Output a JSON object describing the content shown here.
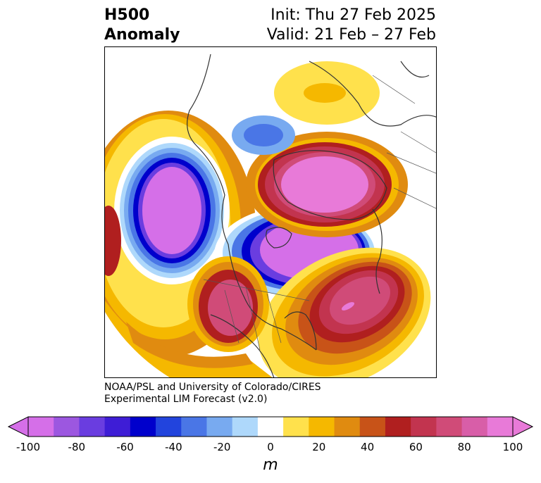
{
  "title": {
    "line1": "H500",
    "line2": "Anomaly",
    "init": "Init: Thu 27 Feb 2025",
    "valid": "Valid: 21 Feb – 27 Feb"
  },
  "credit": {
    "line1": "NOAA/PSL and University of Colorado/CIRES",
    "line2": "Experimental LIM Forecast (v2.0)"
  },
  "colorbar": {
    "unit": "m",
    "ticks": [
      "-100",
      "-80",
      "-60",
      "-40",
      "-20",
      "0",
      "20",
      "40",
      "60",
      "80",
      "100"
    ],
    "levels": [
      -100,
      -90,
      -80,
      -70,
      -60,
      -50,
      -40,
      -30,
      -20,
      -10,
      10,
      20,
      30,
      40,
      50,
      60,
      70,
      80,
      90,
      100
    ],
    "colors": [
      "#d56fe8",
      "#9c57e0",
      "#6a3de0",
      "#3e1dd6",
      "#0000cc",
      "#2244dd",
      "#4a76e6",
      "#78aaf0",
      "#aed8fb",
      "#ffffff",
      "#ffe14c",
      "#f5b800",
      "#e08b10",
      "#c85318",
      "#b01f1f",
      "#c2344f",
      "#d04b78",
      "#d85ea8",
      "#e87ad8"
    ],
    "extend_low_color": "#d56fe8",
    "extend_high_color": "#e87ad8"
  },
  "anomalies": [
    {
      "name": "pacific-low",
      "value": -100
    },
    {
      "name": "hudson-bay-low",
      "value": -100
    },
    {
      "name": "siberia-arctic-high",
      "value": 100
    },
    {
      "name": "atlantic-high",
      "value": 90
    },
    {
      "name": "western-us-high",
      "value": 80
    },
    {
      "name": "eurasia-high",
      "value": 40
    },
    {
      "name": "arctic-ocean-low",
      "value": -30
    }
  ]
}
